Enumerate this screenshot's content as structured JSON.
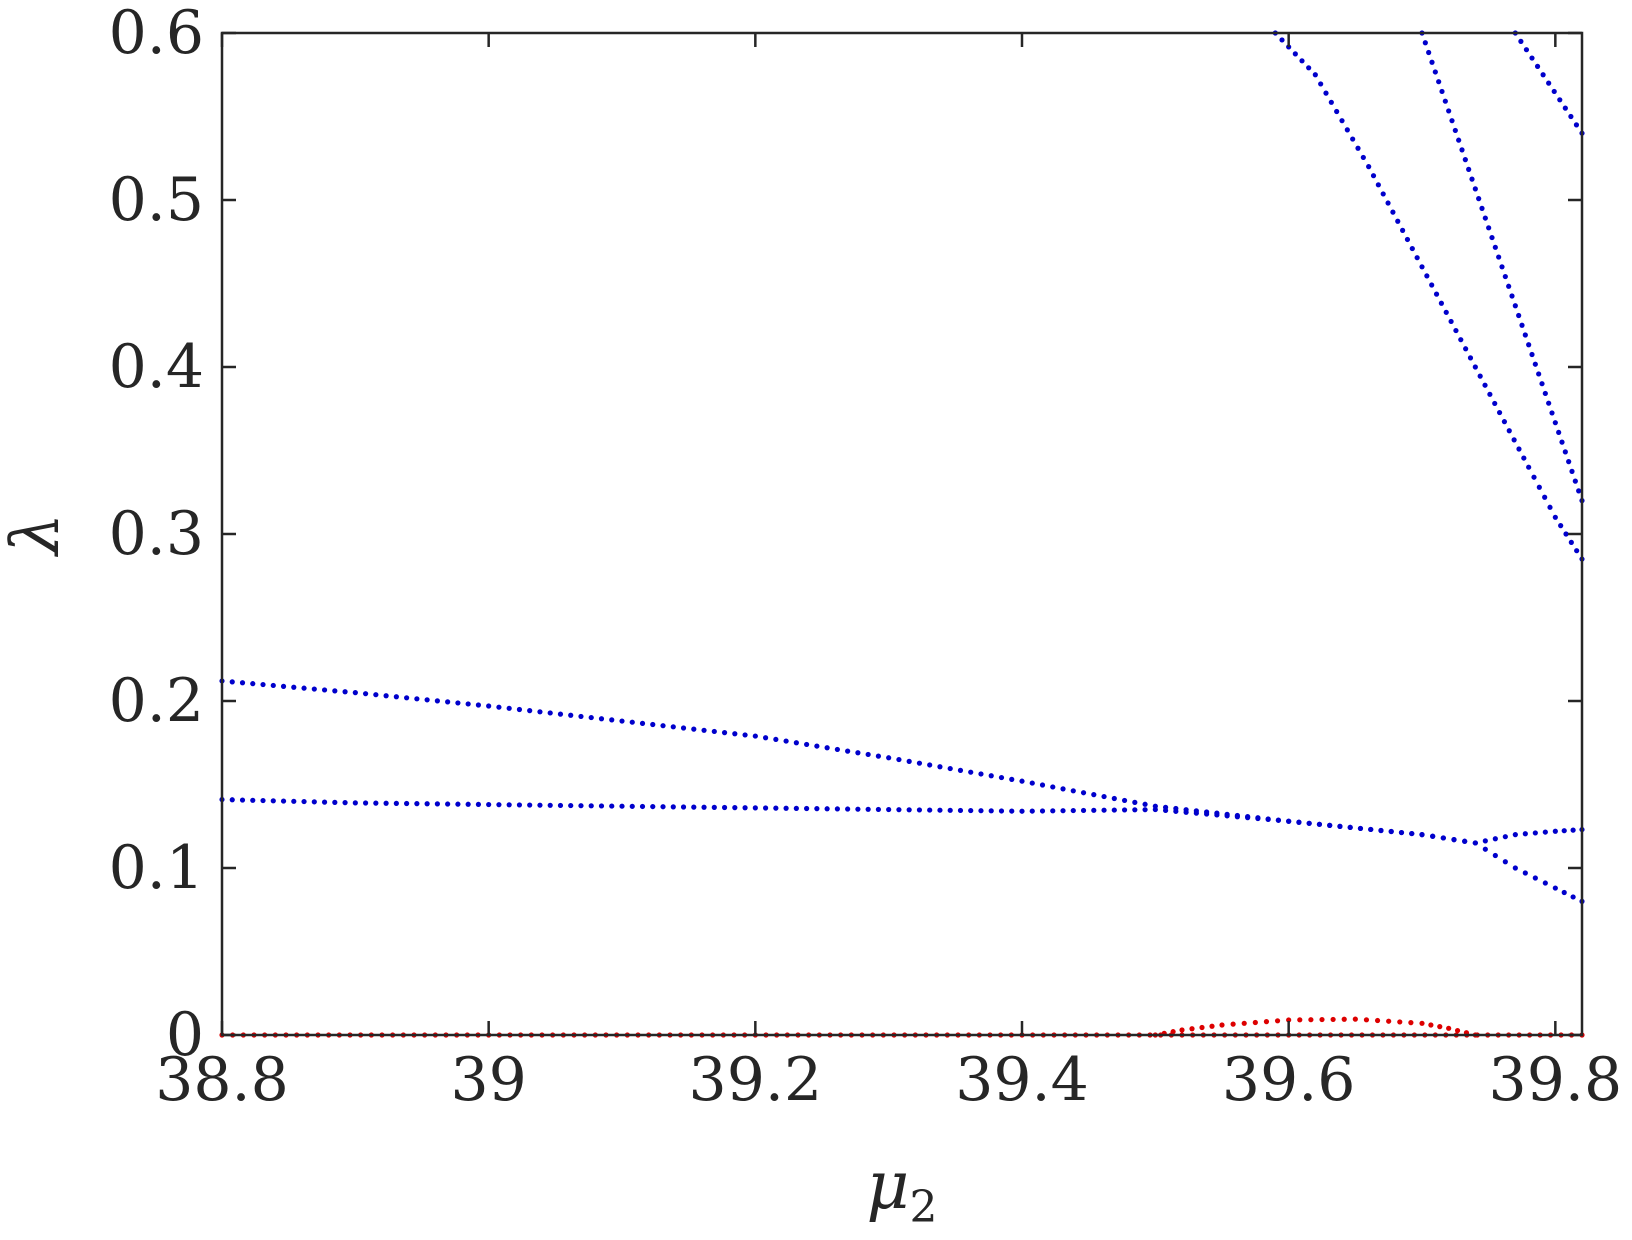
{
  "chart_data": {
    "type": "scatter",
    "xlabel": "μ",
    "xlabel_sub": "2",
    "ylabel": "λ",
    "xlim": [
      38.8,
      39.82
    ],
    "ylim": [
      0,
      0.6
    ],
    "xticks": [
      38.8,
      39.0,
      39.2,
      39.4,
      39.6,
      39.8
    ],
    "xtick_labels": [
      "38.8",
      "39",
      "39.2",
      "39.4",
      "39.6",
      "39.8"
    ],
    "yticks": [
      0,
      0.1,
      0.2,
      0.3,
      0.4,
      0.5,
      0.6
    ],
    "ytick_labels": [
      "0",
      "0.1",
      "0.2",
      "0.3",
      "0.4",
      "0.5",
      "0.6"
    ],
    "grid": false,
    "colors": {
      "blue": "#0000cc",
      "red": "#dd0000",
      "axis": "#262626"
    },
    "series": [
      {
        "color": "blue",
        "x": [
          38.8,
          38.9,
          39.0,
          39.1,
          39.2,
          39.3,
          39.4,
          39.5,
          39.6,
          39.7,
          39.74,
          39.77,
          39.8,
          39.82
        ],
        "y": [
          0.212,
          0.205,
          0.197,
          0.188,
          0.179,
          0.166,
          0.152,
          0.137,
          0.128,
          0.12,
          0.115,
          0.1,
          0.088,
          0.08
        ]
      },
      {
        "color": "blue",
        "x": [
          38.8,
          38.9,
          39.0,
          39.1,
          39.2,
          39.3,
          39.4,
          39.5,
          39.6,
          39.7,
          39.74,
          39.77,
          39.8,
          39.82
        ],
        "y": [
          0.141,
          0.139,
          0.138,
          0.137,
          0.136,
          0.135,
          0.134,
          0.135,
          0.128,
          0.12,
          0.115,
          0.12,
          0.122,
          0.123
        ]
      },
      {
        "color": "blue",
        "x": [
          39.59,
          39.62,
          39.66,
          39.7,
          39.74,
          39.78,
          39.8,
          39.82
        ],
        "y": [
          0.6,
          0.575,
          0.52,
          0.46,
          0.4,
          0.34,
          0.31,
          0.285
        ]
      },
      {
        "color": "blue",
        "x": [
          39.7,
          39.73,
          39.76,
          39.79,
          39.82
        ],
        "y": [
          0.6,
          0.53,
          0.46,
          0.39,
          0.32
        ]
      },
      {
        "color": "blue",
        "x": [
          39.77,
          39.795,
          39.82
        ],
        "y": [
          0.6,
          0.57,
          0.54
        ]
      },
      {
        "color": "red",
        "x": [
          38.8,
          39.0,
          39.2,
          39.4,
          39.6,
          39.82
        ],
        "y": [
          0,
          0,
          0,
          0,
          0,
          0
        ]
      },
      {
        "color": "red",
        "x": [
          39.5,
          39.52,
          39.55,
          39.6,
          39.65,
          39.7,
          39.72,
          39.74
        ],
        "y": [
          0,
          0.003,
          0.006,
          0.009,
          0.0095,
          0.007,
          0.004,
          0
        ]
      }
    ]
  }
}
